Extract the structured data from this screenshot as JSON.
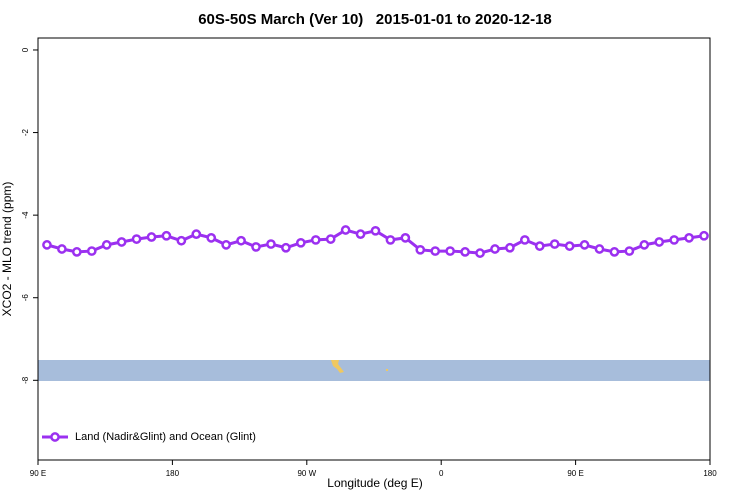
{
  "chart_data": {
    "type": "line",
    "title": "60S-50S March (Ver 10)   2015-01-01 to 2020-12-18",
    "xlabel": "Longitude (deg E)",
    "ylabel": "XCO2 - MLO trend (ppm)",
    "xlim": [
      90,
      540
    ],
    "xticks": [
      {
        "value": 90,
        "label": "90 E"
      },
      {
        "value": 180,
        "label": "180"
      },
      {
        "value": 270,
        "label": "90 W"
      },
      {
        "value": 360,
        "label": "0"
      },
      {
        "value": 450,
        "label": "90 E"
      },
      {
        "value": 540,
        "label": "180"
      }
    ],
    "ylim": [
      -9.93,
      0.29
    ],
    "yticks": [
      0,
      -2,
      -4,
      -6,
      -8
    ],
    "legend": "bottom-left",
    "x": [
      96,
      106,
      116,
      126,
      136,
      146,
      156,
      166,
      176,
      186,
      196,
      206,
      216,
      226,
      236,
      246,
      256,
      266,
      276,
      286,
      296,
      306,
      316,
      326,
      336,
      346,
      356,
      366,
      376,
      386,
      396,
      406,
      416,
      426,
      436,
      446,
      456,
      466,
      476,
      486,
      496,
      506,
      516,
      526,
      536
    ],
    "series": [
      {
        "name": "Land (Nadir&Glint) and Ocean (Glint)",
        "color": "#9b30f0",
        "values": [
          -4.72,
          -4.82,
          -4.89,
          -4.87,
          -4.72,
          -4.65,
          -4.58,
          -4.53,
          -4.5,
          -4.62,
          -4.46,
          -4.55,
          -4.72,
          -4.62,
          -4.77,
          -4.7,
          -4.79,
          -4.67,
          -4.6,
          -4.58,
          -4.36,
          -4.46,
          -4.38,
          -4.6,
          -4.55,
          -4.84,
          -4.87,
          -4.87,
          -4.89,
          -4.92,
          -4.82,
          -4.79,
          -4.6,
          -4.75,
          -4.7,
          -4.75,
          -4.72,
          -4.82,
          -4.89,
          -4.87,
          -4.72,
          -4.65,
          -4.6,
          -4.55,
          -4.5
        ]
      }
    ]
  }
}
